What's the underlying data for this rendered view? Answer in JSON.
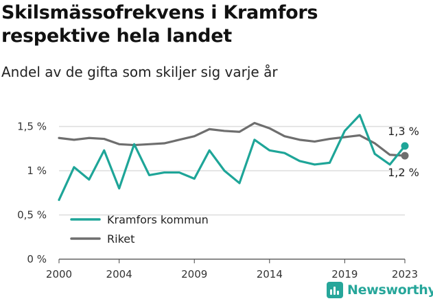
{
  "title_lines": [
    "Skilsmässofrekvens i Kramfors",
    "respektive hela landet"
  ],
  "subtitle": "Andel av de gifta som skiljer sig varje år",
  "brand": {
    "name": "Newsworthy",
    "color": "#26a69a",
    "icon": "bar-chart-icon"
  },
  "chart_data": {
    "type": "line",
    "x": [
      2000,
      2001,
      2002,
      2003,
      2004,
      2005,
      2006,
      2007,
      2008,
      2009,
      2010,
      2011,
      2012,
      2013,
      2014,
      2015,
      2016,
      2017,
      2018,
      2019,
      2020,
      2021,
      2022,
      2023
    ],
    "ylim": [
      0,
      1.7
    ],
    "y_ticks": [
      0,
      0.5,
      1,
      1.5
    ],
    "y_tick_labels": [
      "0 %",
      "0,5 %",
      "1 %",
      "1,5 %"
    ],
    "x_ticks": [
      2000,
      2004,
      2009,
      2014,
      2019,
      2023
    ],
    "x_tick_labels": [
      "2000",
      "2004",
      "2009",
      "2014",
      "2019",
      "2023"
    ],
    "grid": "horizontal",
    "legend": "bottom-left",
    "series": [
      {
        "name": "Kramfors kommun",
        "color": "#1ea598",
        "values": [
          0.67,
          1.04,
          0.9,
          1.23,
          0.8,
          1.3,
          0.95,
          0.98,
          0.98,
          0.91,
          1.23,
          1.0,
          0.86,
          1.35,
          1.23,
          1.2,
          1.11,
          1.07,
          1.09,
          1.45,
          1.63,
          1.19,
          1.07,
          1.28
        ],
        "end_label": "1,3 %"
      },
      {
        "name": "Riket",
        "color": "#6e6e6e",
        "values": [
          1.37,
          1.35,
          1.37,
          1.36,
          1.3,
          1.29,
          1.3,
          1.31,
          1.35,
          1.39,
          1.47,
          1.45,
          1.44,
          1.54,
          1.48,
          1.39,
          1.35,
          1.33,
          1.36,
          1.38,
          1.4,
          1.31,
          1.18,
          1.17
        ],
        "end_label": "1,2 %"
      }
    ]
  }
}
